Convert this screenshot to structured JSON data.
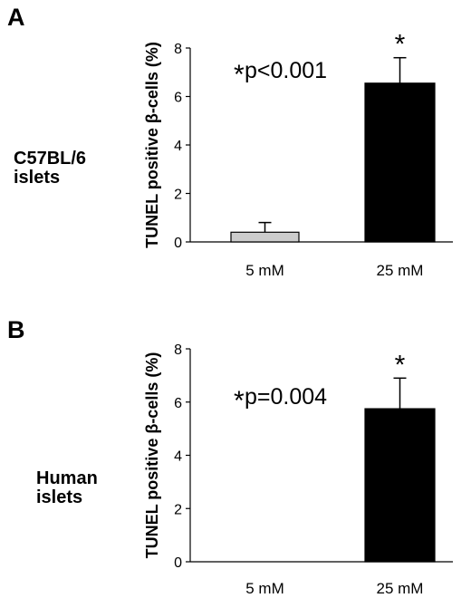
{
  "chart_data": [
    {
      "type": "bar",
      "panel": "A",
      "group_label": [
        "C57BL/6",
        "islets"
      ],
      "ylabel": "TUNEL positive β-cells (%)",
      "categories": [
        "5 mM",
        "25 mM"
      ],
      "values": [
        0.4,
        6.55
      ],
      "errors": [
        0.4,
        1.05
      ],
      "bar_colors": [
        "#cccccc",
        "#000000"
      ],
      "significance": [
        "",
        "*"
      ],
      "annotation_star": "*",
      "annotation": "p<0.001",
      "ylim": [
        0,
        8
      ],
      "yticks": [
        0,
        2,
        4,
        6,
        8
      ],
      "grid": false
    },
    {
      "type": "bar",
      "panel": "B",
      "group_label": [
        "Human",
        "islets"
      ],
      "ylabel": "TUNEL positive β-cells (%)",
      "categories": [
        "5 mM",
        "25 mM"
      ],
      "values": [
        0,
        5.75
      ],
      "errors": [
        0,
        1.15
      ],
      "bar_colors": [
        "#cccccc",
        "#000000"
      ],
      "significance": [
        "",
        "*"
      ],
      "annotation_star": "*",
      "annotation": "p=0.004",
      "ylim": [
        0,
        8
      ],
      "yticks": [
        0,
        2,
        4,
        6,
        8
      ],
      "grid": false
    }
  ]
}
